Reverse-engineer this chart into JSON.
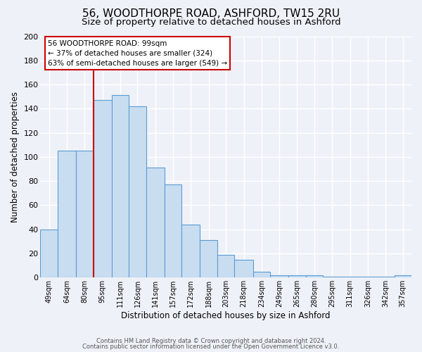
{
  "title": "56, WOODTHORPE ROAD, ASHFORD, TW15 2RU",
  "subtitle": "Size of property relative to detached houses in Ashford",
  "xlabel": "Distribution of detached houses by size in Ashford",
  "ylabel": "Number of detached properties",
  "bar_values": [
    40,
    105,
    105,
    147,
    151,
    142,
    91,
    77,
    44,
    31,
    19,
    15,
    5,
    2,
    2,
    2,
    1,
    1,
    1,
    1,
    2
  ],
  "bin_labels": [
    "49sqm",
    "64sqm",
    "80sqm",
    "95sqm",
    "111sqm",
    "126sqm",
    "141sqm",
    "157sqm",
    "172sqm",
    "188sqm",
    "203sqm",
    "218sqm",
    "234sqm",
    "249sqm",
    "265sqm",
    "280sqm",
    "295sqm",
    "311sqm",
    "326sqm",
    "342sqm",
    "357sqm"
  ],
  "bar_edges": [
    49,
    64,
    80,
    95,
    111,
    126,
    141,
    157,
    172,
    188,
    203,
    218,
    234,
    249,
    265,
    280,
    295,
    311,
    326,
    342,
    357,
    372
  ],
  "bar_color": "#c9ddf0",
  "bar_edge_color": "#5b9bd5",
  "vline_x": 95,
  "vline_color": "#cc0000",
  "ylim": [
    0,
    200
  ],
  "yticks": [
    0,
    20,
    40,
    60,
    80,
    100,
    120,
    140,
    160,
    180,
    200
  ],
  "annotation_title": "56 WOODTHORPE ROAD: 99sqm",
  "annotation_line1": "← 37% of detached houses are smaller (324)",
  "annotation_line2": "63% of semi-detached houses are larger (549) →",
  "annotation_box_color": "#ffffff",
  "annotation_box_edge": "#cc0000",
  "footer_line1": "Contains HM Land Registry data © Crown copyright and database right 2024.",
  "footer_line2": "Contains public sector information licensed under the Open Government Licence v3.0.",
  "background_color": "#eef2f8",
  "grid_color": "#ffffff",
  "title_fontsize": 11,
  "subtitle_fontsize": 9.5
}
